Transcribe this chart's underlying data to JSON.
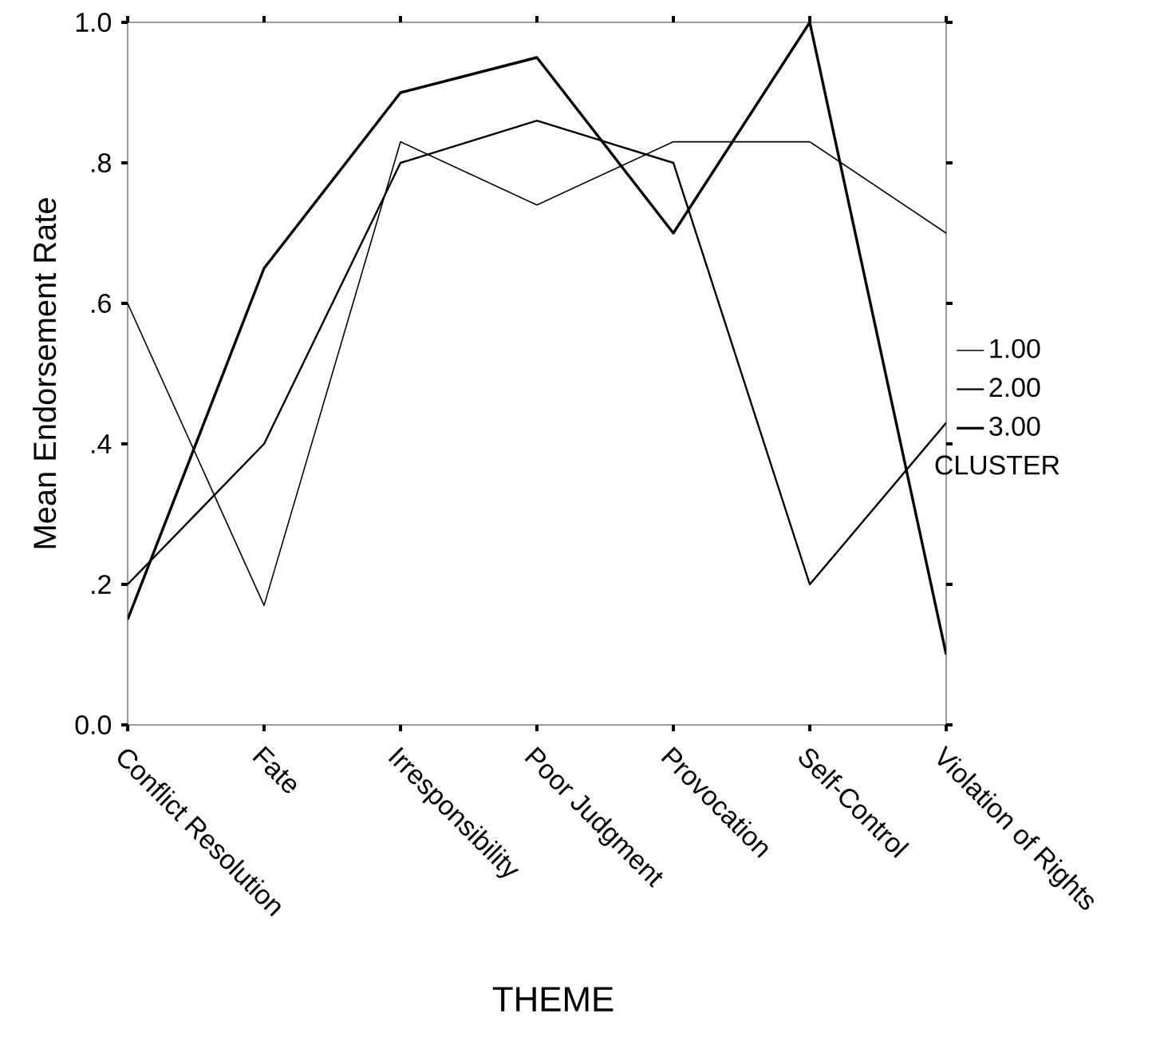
{
  "chart_data": {
    "type": "line",
    "xlabel": "THEME",
    "ylabel": "Mean Endorsement Rate",
    "legend_title": "CLUSTER",
    "legend": "right",
    "categories": [
      "Conflict Resolution",
      "Fate",
      "Irresponsibility",
      "Poor Judgment",
      "Provocation",
      "Self-Control",
      "Violation of Rights"
    ],
    "ylim": [
      0,
      1
    ],
    "yticks": [
      {
        "value": 0,
        "label": "0.0"
      },
      {
        "value": 0.2,
        "label": ".2"
      },
      {
        "value": 0.4,
        "label": ".4"
      },
      {
        "value": 0.6,
        "label": ".6"
      },
      {
        "value": 0.8,
        "label": ".8"
      },
      {
        "value": 1,
        "label": "1.0"
      }
    ],
    "series": [
      {
        "name": "1.00",
        "color": "#000000",
        "values": [
          0.6,
          0.17,
          0.83,
          0.74,
          0.83,
          0.83,
          0.7
        ]
      },
      {
        "name": "2.00",
        "color": "#000000",
        "values": [
          0.2,
          0.4,
          0.8,
          0.86,
          0.8,
          0.2,
          0.43
        ]
      },
      {
        "name": "3.00",
        "color": "#000000",
        "values": [
          0.15,
          0.65,
          0.9,
          0.95,
          0.7,
          1.0,
          0.1
        ]
      }
    ]
  }
}
